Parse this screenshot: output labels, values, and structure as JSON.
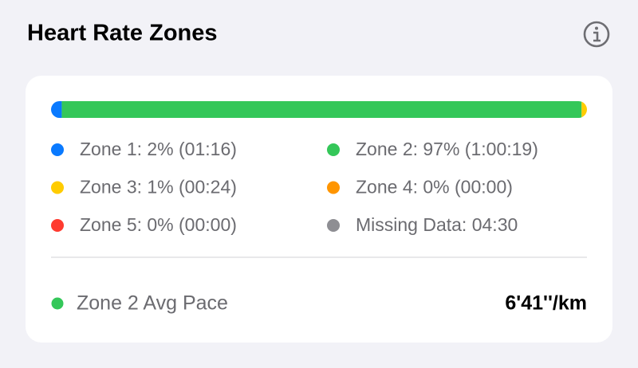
{
  "header": {
    "title": "Heart Rate Zones"
  },
  "zones": [
    {
      "label": "Zone 1: 2% (01:16)",
      "percent": 2,
      "color": "#0a7aff"
    },
    {
      "label": "Zone 2: 97% (1:00:19)",
      "percent": 97,
      "color": "#34c759"
    },
    {
      "label": "Zone 3: 1% (00:24)",
      "percent": 1,
      "color": "#ffcc00"
    },
    {
      "label": "Zone 4: 0% (00:00)",
      "percent": 0,
      "color": "#ff9500"
    },
    {
      "label": "Zone 5: 0% (00:00)",
      "percent": 0,
      "color": "#ff3b30"
    },
    {
      "label": "Missing Data: 04:30",
      "color": "#8e8e93"
    }
  ],
  "pace": {
    "label": "Zone 2 Avg Pace",
    "value": "6'41''/km",
    "color": "#34c759"
  }
}
